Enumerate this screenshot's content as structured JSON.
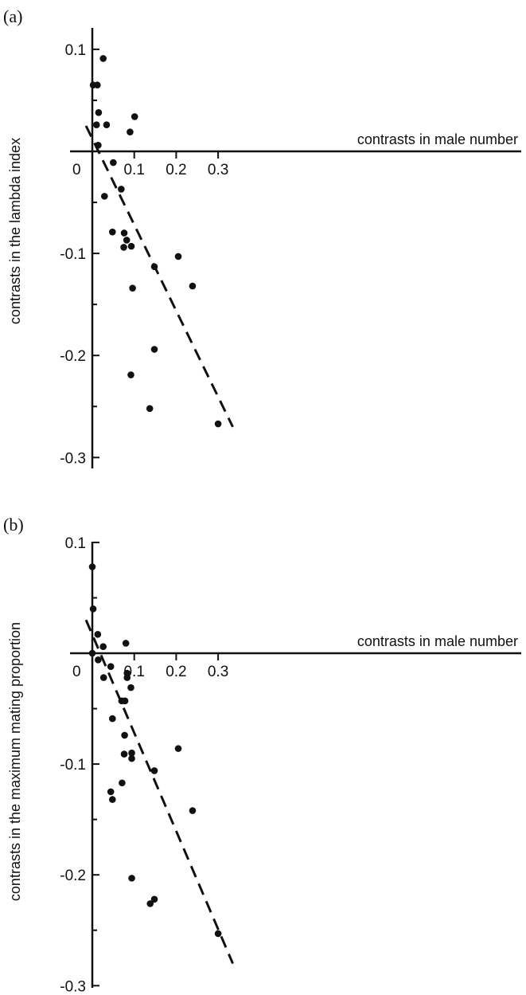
{
  "chart_data": [
    {
      "type": "scatter",
      "panel_label": "(a)",
      "xlabel": "contrasts in male number",
      "ylabel": "contrasts in the lambda index",
      "x_ticks": [
        0.1,
        0.2,
        0.3
      ],
      "x_tick_labels": [
        "0.1",
        "0.2",
        "0.3"
      ],
      "y_ticks": [
        0.1,
        -0.1,
        -0.2,
        -0.3
      ],
      "y_tick_labels": [
        "0.1",
        "-0.1",
        "-0.2",
        "-0.3"
      ],
      "origin_label": "0",
      "xlim": [
        -0.015,
        0.34
      ],
      "ylim": [
        -0.3,
        0.15
      ],
      "trendline": {
        "style": "dashed",
        "x": [
          -0.015,
          0.335
        ],
        "y": [
          0.025,
          -0.27
        ]
      },
      "points": [
        {
          "x": 0.002,
          "y": 0.065
        },
        {
          "x": 0.012,
          "y": 0.065
        },
        {
          "x": 0.026,
          "y": 0.091
        },
        {
          "x": 0.01,
          "y": 0.026
        },
        {
          "x": 0.015,
          "y": 0.038
        },
        {
          "x": 0.014,
          "y": 0.006
        },
        {
          "x": 0.034,
          "y": 0.026
        },
        {
          "x": 0.09,
          "y": 0.019
        },
        {
          "x": 0.101,
          "y": 0.034
        },
        {
          "x": 0.05,
          "y": -0.011
        },
        {
          "x": 0.029,
          "y": -0.044
        },
        {
          "x": 0.069,
          "y": -0.037
        },
        {
          "x": 0.048,
          "y": -0.079
        },
        {
          "x": 0.076,
          "y": -0.08
        },
        {
          "x": 0.082,
          "y": -0.087
        },
        {
          "x": 0.075,
          "y": -0.094
        },
        {
          "x": 0.093,
          "y": -0.093
        },
        {
          "x": 0.096,
          "y": -0.134
        },
        {
          "x": 0.148,
          "y": -0.113
        },
        {
          "x": 0.205,
          "y": -0.103
        },
        {
          "x": 0.239,
          "y": -0.132
        },
        {
          "x": 0.148,
          "y": -0.194
        },
        {
          "x": 0.092,
          "y": -0.219
        },
        {
          "x": 0.137,
          "y": -0.252
        },
        {
          "x": 0.3,
          "y": -0.267
        }
      ]
    },
    {
      "type": "scatter",
      "panel_label": "(b)",
      "xlabel": "contrasts in male number",
      "ylabel": "contrasts in the maximum mating proportion",
      "x_ticks": [
        0.1,
        0.2,
        0.3
      ],
      "x_tick_labels": [
        "0.1",
        "0.2",
        "0.3"
      ],
      "y_ticks": [
        0.1,
        -0.1,
        -0.2,
        -0.3
      ],
      "y_tick_labels": [
        "0.1",
        "-0.1",
        "-0.2",
        "-0.3"
      ],
      "origin_label": "0",
      "xlim": [
        -0.015,
        0.34
      ],
      "ylim": [
        -0.3,
        0.1
      ],
      "trendline": {
        "style": "dashed",
        "x": [
          -0.015,
          0.335
        ],
        "y": [
          0.03,
          -0.28
        ]
      },
      "points": [
        {
          "x": 0.0,
          "y": 0.078
        },
        {
          "x": 0.002,
          "y": 0.04
        },
        {
          "x": 0.013,
          "y": 0.017
        },
        {
          "x": 0.026,
          "y": 0.006
        },
        {
          "x": 0.0,
          "y": 0.0
        },
        {
          "x": 0.014,
          "y": -0.006
        },
        {
          "x": 0.027,
          "y": -0.022
        },
        {
          "x": 0.044,
          "y": -0.012
        },
        {
          "x": 0.08,
          "y": 0.009
        },
        {
          "x": 0.083,
          "y": -0.018
        },
        {
          "x": 0.083,
          "y": -0.022
        },
        {
          "x": 0.092,
          "y": -0.031
        },
        {
          "x": 0.07,
          "y": -0.043
        },
        {
          "x": 0.078,
          "y": -0.043
        },
        {
          "x": 0.048,
          "y": -0.059
        },
        {
          "x": 0.077,
          "y": -0.074
        },
        {
          "x": 0.076,
          "y": -0.091
        },
        {
          "x": 0.094,
          "y": -0.09
        },
        {
          "x": 0.094,
          "y": -0.095
        },
        {
          "x": 0.071,
          "y": -0.117
        },
        {
          "x": 0.044,
          "y": -0.125
        },
        {
          "x": 0.048,
          "y": -0.132
        },
        {
          "x": 0.148,
          "y": -0.106
        },
        {
          "x": 0.205,
          "y": -0.086
        },
        {
          "x": 0.239,
          "y": -0.142
        },
        {
          "x": 0.094,
          "y": -0.203
        },
        {
          "x": 0.138,
          "y": -0.226
        },
        {
          "x": 0.148,
          "y": -0.222
        },
        {
          "x": 0.3,
          "y": -0.253
        }
      ]
    }
  ]
}
